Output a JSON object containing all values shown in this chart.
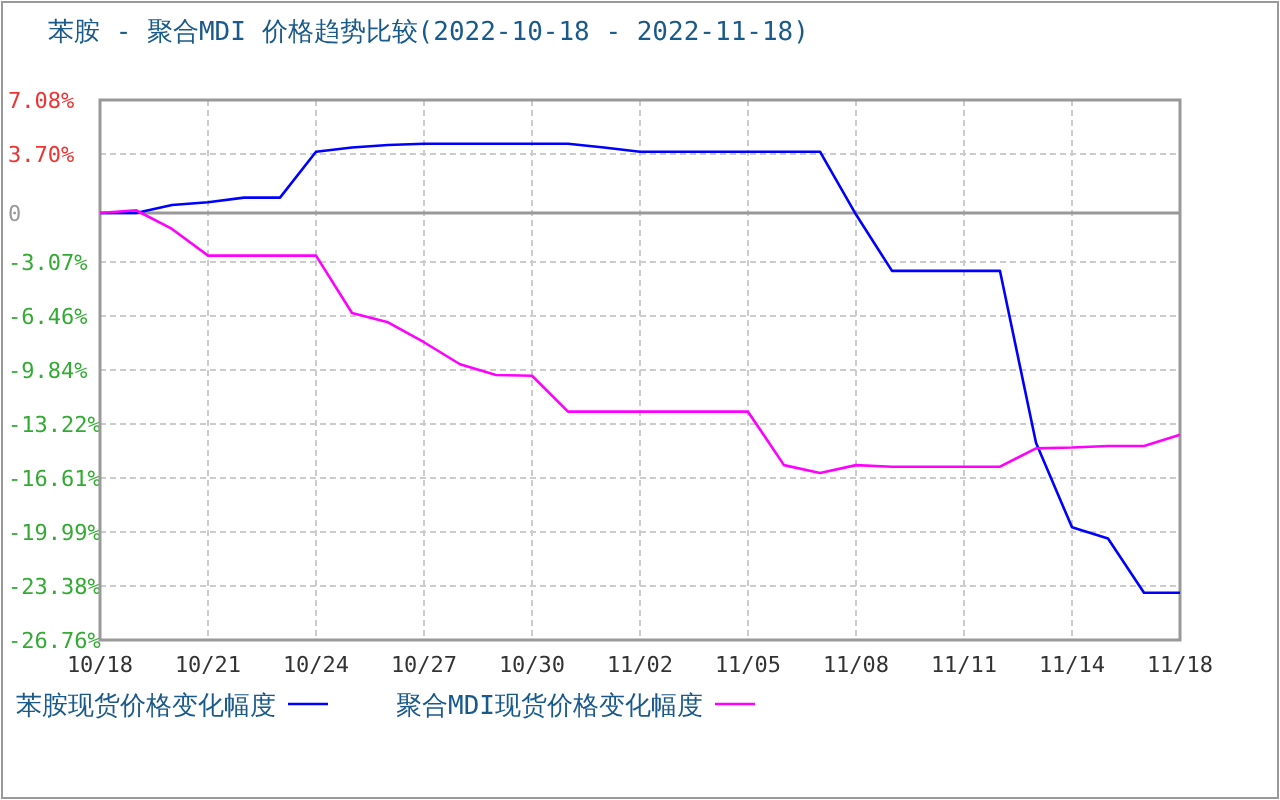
{
  "chart_data": {
    "type": "line",
    "title": "苯胺 - 聚合MDI 价格趋势比较(2022-10-18 - 2022-11-18)",
    "categories": [
      "10/18",
      null,
      null,
      "10/21",
      null,
      null,
      "10/24",
      null,
      null,
      "10/27",
      null,
      null,
      "10/30",
      null,
      null,
      "11/02",
      null,
      null,
      "11/05",
      null,
      null,
      "11/08",
      null,
      null,
      "11/11",
      null,
      null,
      "11/14",
      null,
      null,
      "11/18"
    ],
    "series": [
      {
        "name": "苯胺现货价格变化幅度",
        "color": "#0000ff",
        "values": [
          0,
          0,
          0.5,
          0.67,
          0.96,
          0.96,
          3.84,
          4.1,
          4.26,
          4.34,
          4.34,
          4.34,
          4.34,
          4.34,
          4.1,
          3.84,
          3.84,
          3.84,
          3.84,
          3.84,
          3.84,
          -0.1,
          -3.63,
          -3.63,
          -3.63,
          -3.63,
          -14.4,
          -19.7,
          -20.4,
          -23.8,
          -23.8
        ]
      },
      {
        "name": "聚合MDI现货价格变化幅度",
        "color": "#ff00ff",
        "values": [
          0,
          0.17,
          -1.0,
          -2.67,
          -2.67,
          -2.67,
          -2.67,
          -6.27,
          -6.85,
          -8.1,
          -9.48,
          -10.15,
          -10.2,
          -12.45,
          -12.45,
          -12.45,
          -12.45,
          -12.45,
          -12.45,
          -15.8,
          -16.3,
          -15.8,
          -15.9,
          -15.9,
          -15.9,
          -15.9,
          -14.75,
          -14.7,
          -14.6,
          -14.6,
          -13.9
        ]
      }
    ],
    "ylim": [
      -26.76,
      7.08
    ],
    "yticks": [
      {
        "value": 7.08,
        "label": "7.08%"
      },
      {
        "value": 3.7,
        "label": "3.70%"
      },
      0,
      {
        "value": -3.07,
        "label": "-3.07%"
      },
      {
        "value": -6.46,
        "label": "-6.46%"
      },
      {
        "value": -9.84,
        "label": "-9.84%"
      },
      {
        "value": -13.22,
        "label": "-13.22%"
      },
      {
        "value": -16.61,
        "label": "-16.61%"
      },
      {
        "value": -19.99,
        "label": "-19.99%"
      },
      {
        "value": -23.38,
        "label": "-23.38%"
      },
      {
        "value": -26.76,
        "label": "-26.76%"
      }
    ],
    "ref_lines": [
      {
        "axis": "y",
        "value": 0,
        "color": "#999999"
      }
    ],
    "grid": true,
    "legend": "bottom",
    "marker": "none",
    "line_style": "solid"
  }
}
